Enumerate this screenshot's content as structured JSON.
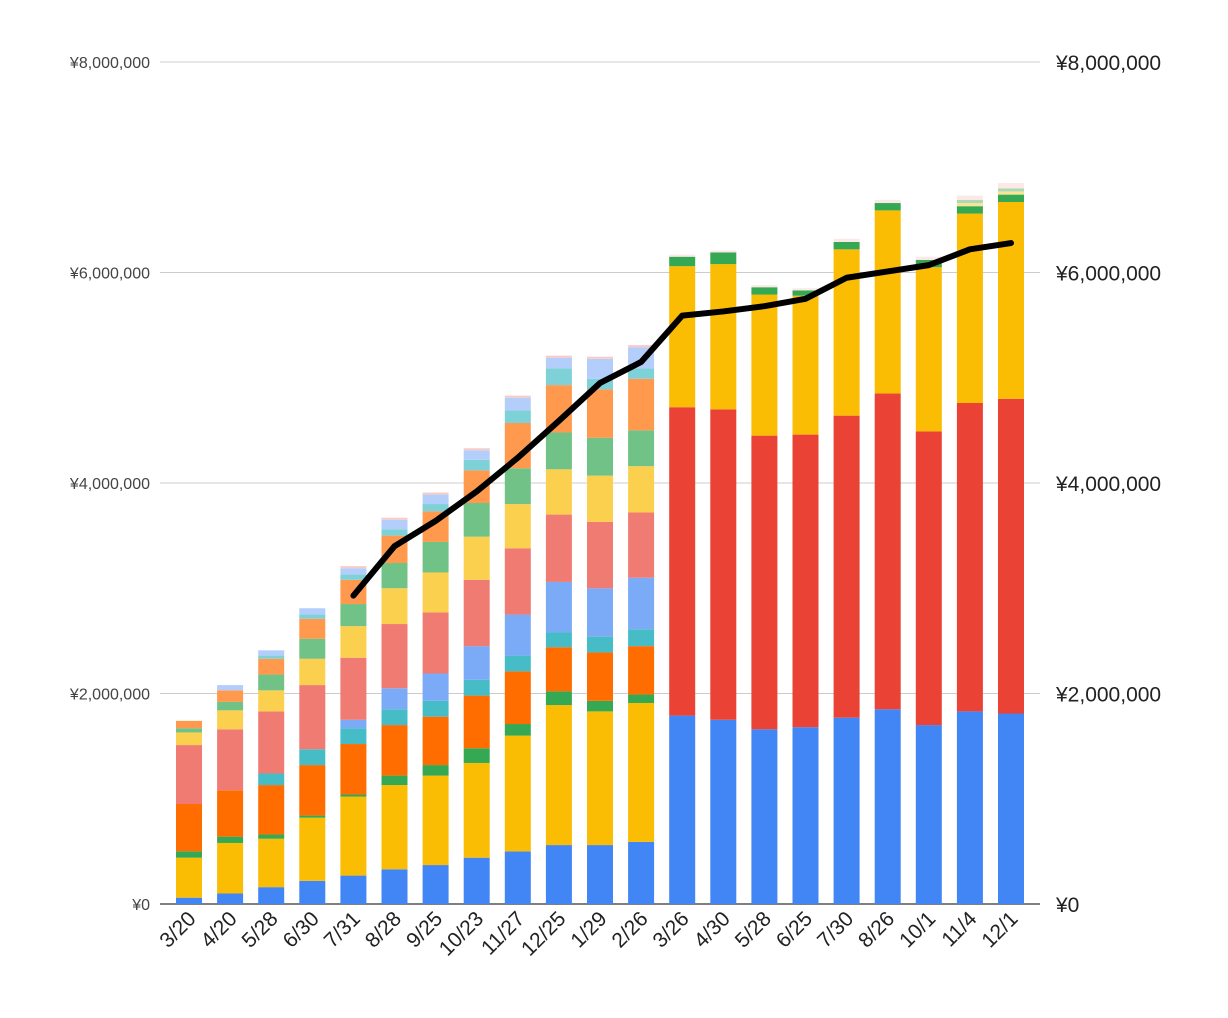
{
  "chart_data": {
    "type": "bar",
    "stacked": true,
    "title": "",
    "xlabel": "",
    "ylabel": "",
    "grid": true,
    "legend": "none",
    "y_axes": {
      "left": {
        "ticks": [
          "¥0",
          "¥2,000,000",
          "¥4,000,000",
          "¥6,000,000",
          "¥8,000,000"
        ],
        "range": [
          0,
          8000000
        ]
      },
      "right": {
        "ticks": [
          "¥0",
          "¥2,000,000",
          "¥4,000,000",
          "¥6,000,000",
          "¥8,000,000"
        ],
        "range": [
          0,
          8000000
        ]
      }
    },
    "categories": [
      "3/20",
      "4/20",
      "5/28",
      "6/30",
      "7/31",
      "8/28",
      "9/25",
      "10/23",
      "11/27",
      "12/25",
      "1/29",
      "2/26",
      "3/26",
      "4/30",
      "5/28",
      "6/25",
      "7/30",
      "8/26",
      "10/1",
      "11/4",
      "12/1"
    ],
    "series": [
      {
        "color": "#4285F4",
        "values": [
          60000,
          100000,
          160000,
          220000,
          270000,
          330000,
          370000,
          440000,
          500000,
          560000,
          560000,
          590000,
          1790000,
          1750000,
          1660000,
          1680000,
          1770000,
          1850000,
          1700000,
          1830000,
          1810000
        ]
      },
      {
        "color": "#EA4335",
        "values": [
          0,
          0,
          0,
          0,
          0,
          0,
          0,
          0,
          0,
          0,
          0,
          0,
          2930000,
          2950000,
          2790000,
          2780000,
          2870000,
          3000000,
          2790000,
          2930000,
          2990000
        ]
      },
      {
        "color": "#FBBC04",
        "values": [
          380000,
          480000,
          460000,
          600000,
          750000,
          800000,
          850000,
          900000,
          1100000,
          1330000,
          1270000,
          1320000,
          1340000,
          1380000,
          1340000,
          1320000,
          1580000,
          1740000,
          1560000,
          1800000,
          1870000
        ]
      },
      {
        "color": "#34A853",
        "values": [
          60000,
          60000,
          40000,
          20000,
          20000,
          90000,
          100000,
          140000,
          110000,
          130000,
          100000,
          80000,
          90000,
          110000,
          70000,
          50000,
          70000,
          70000,
          70000,
          70000,
          70000
        ]
      },
      {
        "color": "#FF6D01",
        "values": [
          450000,
          440000,
          470000,
          480000,
          480000,
          480000,
          460000,
          500000,
          500000,
          420000,
          460000,
          460000,
          0,
          0,
          0,
          0,
          0,
          0,
          0,
          0,
          0
        ]
      },
      {
        "color": "#46BDC6",
        "values": [
          0,
          0,
          110000,
          150000,
          150000,
          150000,
          150000,
          150000,
          150000,
          140000,
          150000,
          160000,
          0,
          0,
          0,
          0,
          0,
          0,
          0,
          0,
          0
        ]
      },
      {
        "color": "#7BAAF7",
        "values": [
          0,
          0,
          0,
          0,
          80000,
          200000,
          260000,
          320000,
          390000,
          480000,
          460000,
          490000,
          0,
          0,
          0,
          0,
          0,
          0,
          0,
          0,
          0
        ]
      },
      {
        "color": "#F07B72",
        "values": [
          560000,
          580000,
          590000,
          610000,
          590000,
          610000,
          580000,
          630000,
          630000,
          640000,
          630000,
          620000,
          0,
          0,
          0,
          0,
          0,
          0,
          0,
          0,
          0
        ]
      },
      {
        "color": "#FCD04F",
        "values": [
          120000,
          180000,
          200000,
          250000,
          300000,
          340000,
          380000,
          410000,
          420000,
          430000,
          440000,
          440000,
          0,
          0,
          0,
          0,
          0,
          0,
          0,
          0,
          0
        ]
      },
      {
        "color": "#71C287",
        "values": [
          40000,
          80000,
          150000,
          190000,
          210000,
          240000,
          290000,
          320000,
          340000,
          350000,
          360000,
          340000,
          0,
          0,
          0,
          0,
          0,
          0,
          0,
          0,
          0
        ]
      },
      {
        "color": "#FF994D",
        "values": [
          70000,
          110000,
          150000,
          190000,
          230000,
          260000,
          290000,
          310000,
          430000,
          450000,
          460000,
          490000,
          0,
          0,
          0,
          0,
          0,
          0,
          0,
          0,
          0
        ]
      },
      {
        "color": "#7ED1D7",
        "values": [
          0,
          0,
          30000,
          40000,
          50000,
          60000,
          70000,
          100000,
          120000,
          160000,
          100000,
          100000,
          0,
          0,
          0,
          0,
          0,
          0,
          0,
          0,
          0
        ]
      },
      {
        "color": "#B3CEFB",
        "values": [
          0,
          50000,
          50000,
          60000,
          60000,
          90000,
          90000,
          90000,
          120000,
          100000,
          190000,
          200000,
          0,
          0,
          0,
          0,
          0,
          0,
          0,
          0,
          0
        ]
      },
      {
        "color": "#F7CBC7",
        "values": [
          0,
          0,
          0,
          0,
          20000,
          20000,
          20000,
          20000,
          20000,
          20000,
          20000,
          20000,
          0,
          0,
          0,
          0,
          0,
          0,
          0,
          0,
          0
        ]
      },
      {
        "color": "#FDE293",
        "values": [
          0,
          0,
          0,
          0,
          0,
          0,
          0,
          0,
          0,
          0,
          0,
          0,
          0,
          0,
          0,
          0,
          0,
          0,
          0,
          30000,
          30000
        ]
      },
      {
        "color": "#A9DAB5",
        "values": [
          0,
          0,
          0,
          0,
          0,
          0,
          0,
          0,
          0,
          0,
          0,
          0,
          0,
          0,
          0,
          0,
          0,
          0,
          0,
          30000,
          30000
        ]
      },
      {
        "color": "#FCE8E6",
        "values": [
          0,
          0,
          0,
          0,
          0,
          0,
          0,
          0,
          0,
          0,
          0,
          0,
          20000,
          20000,
          20000,
          20000,
          30000,
          30000,
          30000,
          40000,
          50000
        ]
      }
    ],
    "line": {
      "color": "#000000",
      "axis": "right",
      "values": [
        null,
        null,
        null,
        null,
        2930000,
        3400000,
        3640000,
        3920000,
        4240000,
        4590000,
        4950000,
        5150000,
        5590000,
        5630000,
        5680000,
        5750000,
        5950000,
        6010000,
        6070000,
        6220000,
        6280000
      ]
    }
  }
}
